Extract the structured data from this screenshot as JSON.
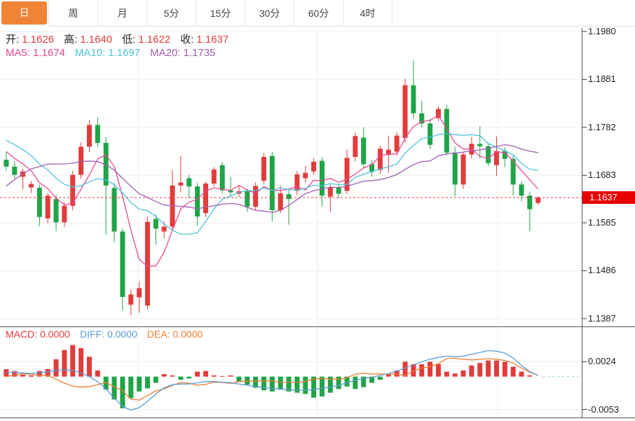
{
  "tabs": [
    {
      "label": "日",
      "active": true
    },
    {
      "label": "周",
      "active": false
    },
    {
      "label": "月",
      "active": false
    },
    {
      "label": "5分",
      "active": false
    },
    {
      "label": "15分",
      "active": false
    },
    {
      "label": "30分",
      "active": false
    },
    {
      "label": "60分",
      "active": false
    },
    {
      "label": "4时",
      "active": false
    }
  ],
  "legend": {
    "ohlc": [
      {
        "name": "open",
        "label": "开:",
        "value": "1.1626"
      },
      {
        "name": "high",
        "label": "高:",
        "value": "1.1640"
      },
      {
        "name": "low",
        "label": "低:",
        "value": "1.1622"
      },
      {
        "name": "close",
        "label": "收:",
        "value": "1.1637"
      }
    ],
    "ma": [
      {
        "name": "ma5",
        "label": "MA5:",
        "value": "1.1674",
        "color": "#e84a92"
      },
      {
        "name": "ma10",
        "label": "MA10:",
        "value": "1.1697",
        "color": "#4ec3dd"
      },
      {
        "name": "ma20",
        "label": "MA20:",
        "value": "1.1735",
        "color": "#a05fb5"
      }
    ],
    "macd": [
      {
        "name": "macd",
        "label": "MACD:",
        "value": "0.0000",
        "color": "#e23b3c"
      },
      {
        "name": "diff",
        "label": "DIFF:",
        "value": "0.0000",
        "color": "#5b9bd5"
      },
      {
        "name": "dea",
        "label": "DEA:",
        "value": "0.0000",
        "color": "#ed7d31"
      }
    ]
  },
  "y_axis_labels": [
    "1.1980",
    "1.1881",
    "1.1782",
    "1.1683",
    "1.1585",
    "1.1486",
    "1.1387"
  ],
  "macd_axis_labels": [
    "0.0024",
    "-0.0053"
  ],
  "price_badge": "1.1637",
  "colors": {
    "accent": "#ef8437",
    "up": "#e23b3c",
    "down": "#1fa446",
    "ma5": "#e84a92",
    "ma10": "#4ec3dd",
    "ma20": "#a05fb5",
    "diff_line": "#5b9bd5",
    "dea_line": "#ed7d31",
    "badge": "#e60000",
    "grid": "#ececec",
    "frame": "#55585c",
    "dashed_price": "#e23b3c",
    "zero_dash": "#a8d8ea",
    "label_text": "#222222"
  },
  "chart_data": {
    "type": "candlestick",
    "title": "",
    "legend_position": "top-left",
    "grid": true,
    "price_gridlines": [
      1.198,
      1.1881,
      1.1782,
      1.1683,
      1.1585,
      1.1486,
      1.1387
    ],
    "ylim_main": [
      1.1371,
      1.199
    ],
    "current_price": 1.1637,
    "last_ohlc": {
      "open": 1.1626,
      "high": 1.164,
      "low": 1.1622,
      "close": 1.1637
    },
    "ma_periods": [
      5,
      10,
      20
    ],
    "ma_last_values": {
      "ma5": 1.1674,
      "ma10": 1.1697,
      "ma20": 1.1735
    },
    "ma_seed_closes": [
      1.14,
      1.142,
      1.144,
      1.147,
      1.15,
      1.154,
      1.158,
      1.162,
      1.165,
      1.168,
      1.176,
      1.178,
      1.179,
      1.1786,
      1.1772,
      1.1766,
      1.1756,
      1.1746,
      1.1736,
      1.1722
    ],
    "candles": [
      [
        1.1715,
        1.1731,
        1.1693,
        1.1701
      ],
      [
        1.1701,
        1.1713,
        1.1676,
        1.1684
      ],
      [
        1.168,
        1.1697,
        1.1654,
        1.1691
      ],
      [
        1.1658,
        1.1671,
        1.1646,
        1.1665
      ],
      [
        1.1657,
        1.1664,
        1.1578,
        1.1597
      ],
      [
        1.1594,
        1.1646,
        1.1584,
        1.1641
      ],
      [
        1.1634,
        1.1643,
        1.1568,
        1.1586
      ],
      [
        1.1586,
        1.1627,
        1.1576,
        1.162
      ],
      [
        1.162,
        1.1692,
        1.1611,
        1.1684
      ],
      [
        1.1684,
        1.1751,
        1.1676,
        1.1742
      ],
      [
        1.1742,
        1.1797,
        1.1731,
        1.1787
      ],
      [
        1.1787,
        1.1802,
        1.1741,
        1.175
      ],
      [
        1.175,
        1.1762,
        1.1561,
        1.1662
      ],
      [
        1.1657,
        1.1667,
        1.1545,
        1.1567
      ],
      [
        1.1567,
        1.1573,
        1.1404,
        1.1432
      ],
      [
        1.1416,
        1.1447,
        1.1394,
        1.1437
      ],
      [
        1.1431,
        1.1463,
        1.1399,
        1.145
      ],
      [
        1.1414,
        1.1598,
        1.1406,
        1.1587
      ],
      [
        1.1593,
        1.1602,
        1.154,
        1.1573
      ],
      [
        1.1567,
        1.1587,
        1.1553,
        1.1577
      ],
      [
        1.1577,
        1.1694,
        1.1569,
        1.1662
      ],
      [
        1.1662,
        1.1723,
        1.1649,
        1.1668
      ],
      [
        1.1677,
        1.1684,
        1.1635,
        1.166
      ],
      [
        1.166,
        1.1667,
        1.1578,
        1.1598
      ],
      [
        1.1605,
        1.167,
        1.1597,
        1.1666
      ],
      [
        1.1666,
        1.17,
        1.166,
        1.1695
      ],
      [
        1.1704,
        1.171,
        1.1645,
        1.1652
      ],
      [
        1.1652,
        1.168,
        1.164,
        1.1648
      ],
      [
        1.1645,
        1.1662,
        1.1638,
        1.165
      ],
      [
        1.165,
        1.1655,
        1.1608,
        1.1618
      ],
      [
        1.1618,
        1.1668,
        1.1611,
        1.1661
      ],
      [
        1.1672,
        1.1729,
        1.1665,
        1.1721
      ],
      [
        1.1723,
        1.1731,
        1.1588,
        1.1611
      ],
      [
        1.1611,
        1.1662,
        1.1605,
        1.1646
      ],
      [
        1.1644,
        1.1652,
        1.1581,
        1.1634
      ],
      [
        1.1651,
        1.1692,
        1.1642,
        1.1685
      ],
      [
        1.1677,
        1.1702,
        1.1668,
        1.1688
      ],
      [
        1.1691,
        1.1718,
        1.1684,
        1.1711
      ],
      [
        1.1713,
        1.172,
        1.1619,
        1.1641
      ],
      [
        1.1639,
        1.1664,
        1.1607,
        1.1658
      ],
      [
        1.1658,
        1.1666,
        1.1636,
        1.1645
      ],
      [
        1.1651,
        1.1736,
        1.1644,
        1.1719
      ],
      [
        1.1721,
        1.1772,
        1.1712,
        1.1764
      ],
      [
        1.1761,
        1.1782,
        1.1698,
        1.1706
      ],
      [
        1.1706,
        1.1714,
        1.168,
        1.169
      ],
      [
        1.1694,
        1.1744,
        1.1686,
        1.1738
      ],
      [
        1.1725,
        1.1765,
        1.1688,
        1.1736
      ],
      [
        1.1732,
        1.1772,
        1.1724,
        1.1765
      ],
      [
        1.176,
        1.1882,
        1.175,
        1.1869
      ],
      [
        1.1869,
        1.192,
        1.18,
        1.1811
      ],
      [
        1.1811,
        1.1837,
        1.1782,
        1.179
      ],
      [
        1.179,
        1.18,
        1.1738,
        1.1746
      ],
      [
        1.1801,
        1.1826,
        1.1795,
        1.182
      ],
      [
        1.182,
        1.1828,
        1.1724,
        1.173
      ],
      [
        1.173,
        1.1742,
        1.164,
        1.1664
      ],
      [
        1.1664,
        1.1731,
        1.1655,
        1.1726
      ],
      [
        1.1726,
        1.1762,
        1.1718,
        1.1748
      ],
      [
        1.1748,
        1.1784,
        1.1717,
        1.1743
      ],
      [
        1.1743,
        1.175,
        1.1702,
        1.1708
      ],
      [
        1.1704,
        1.1763,
        1.1682,
        1.1733
      ],
      [
        1.1733,
        1.1741,
        1.17,
        1.1717
      ],
      [
        1.1717,
        1.1724,
        1.1641,
        1.1664
      ],
      [
        1.1664,
        1.1671,
        1.1629,
        1.1641
      ],
      [
        1.1641,
        1.1649,
        1.1568,
        1.1613
      ],
      [
        1.1626,
        1.164,
        1.1622,
        1.1637
      ]
    ],
    "macd": {
      "ylim": [
        -0.0066,
        0.0081
      ],
      "gridlines": [
        0.0024,
        -0.0053
      ],
      "hist_formula": "hist = 2*(diff-dea)",
      "hist": [
        0.0012,
        0.0009,
        0.0003,
        0.0002,
        0.0009,
        0.0012,
        0.0028,
        0.0043,
        0.0051,
        0.0046,
        0.0032,
        0.001,
        -0.0021,
        -0.0037,
        -0.0051,
        -0.0035,
        -0.0024,
        -0.0019,
        -0.001,
        0.0004,
        0.0002,
        -0.0005,
        -0.0003,
        0.0008,
        0.0009,
        0.0002,
        0.0001,
        0.0002,
        -0.0008,
        -0.0013,
        -0.0018,
        -0.0022,
        -0.0024,
        -0.0021,
        -0.0024,
        -0.0026,
        -0.0028,
        -0.0034,
        -0.0032,
        -0.0026,
        -0.002,
        -0.0016,
        -0.002,
        -0.0017,
        -0.001,
        -0.0005,
        0.0003,
        0.001,
        0.0024,
        0.002,
        0.002,
        0.0024,
        0.002,
        0.0008,
        0.0005,
        0.001,
        0.0018,
        0.0022,
        0.0026,
        0.0026,
        0.0024,
        0.0016,
        0.0008,
        0.0002,
        0.0
      ],
      "diff": [
        0.0006,
        0.0007,
        0.0006,
        0.0005,
        0.0006,
        0.0008,
        0.001,
        0.0011,
        0.001,
        0.0006,
        0.0,
        -0.0008,
        -0.002,
        -0.0035,
        -0.0048,
        -0.0054,
        -0.005,
        -0.004,
        -0.0028,
        -0.0018,
        -0.0013,
        -0.0012,
        -0.0012,
        -0.001,
        -0.0008,
        -0.0008,
        -0.0009,
        -0.001,
        -0.0012,
        -0.0014,
        -0.0016,
        -0.0018,
        -0.0019,
        -0.002,
        -0.0021,
        -0.0022,
        -0.0022,
        -0.0021,
        -0.0019,
        -0.0017,
        -0.0014,
        -0.001,
        -0.0006,
        -0.0003,
        -0.0001,
        0.0002,
        0.0005,
        0.0009,
        0.0014,
        0.0019,
        0.0024,
        0.0028,
        0.0031,
        0.0033,
        0.0032,
        0.0033,
        0.0036,
        0.0039,
        0.0042,
        0.0041,
        0.0038,
        0.003,
        0.0018,
        0.0008,
        0.0002
      ]
    }
  }
}
